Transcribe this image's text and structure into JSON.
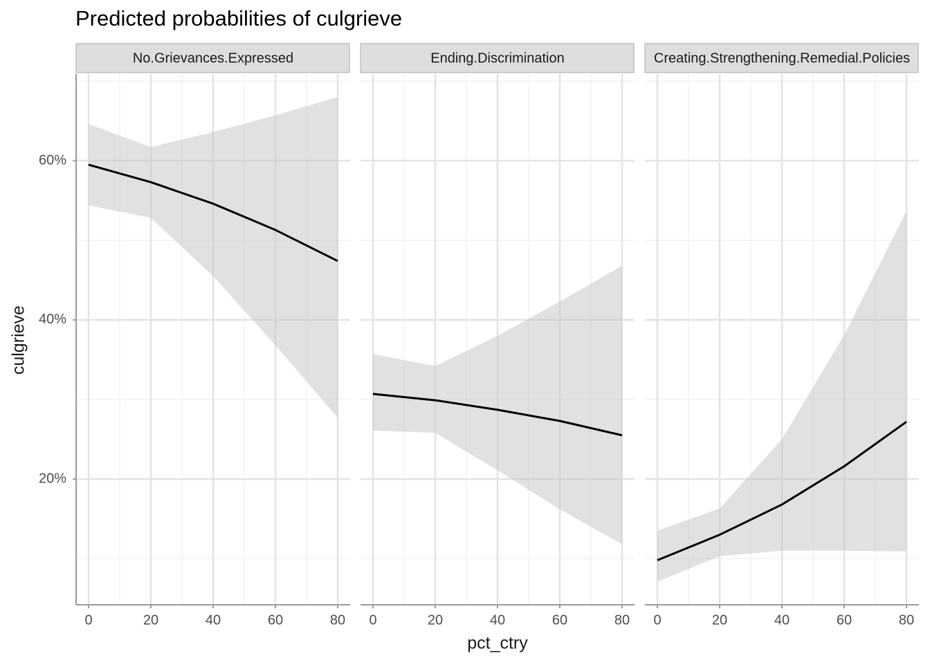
{
  "chart_data": {
    "type": "line",
    "title": "Predicted probabilities of culgrieve",
    "x_label": "pct_ctry",
    "y_label": "culgrieve",
    "xlim": [
      -4,
      84
    ],
    "xticks": [
      0,
      20,
      40,
      60,
      80
    ],
    "x_minor_grid": [
      10,
      30,
      50,
      70
    ],
    "ylim": [
      4.2,
      70.9
    ],
    "yticks": [
      {
        "value": 20,
        "label": "20%"
      },
      {
        "value": 40,
        "label": "40%"
      },
      {
        "value": 60,
        "label": "60%"
      }
    ],
    "y_minor_grid": [
      10,
      30,
      50,
      70
    ],
    "grid": true,
    "color": "#000000",
    "band_color": "#c8c8c8",
    "facets": [
      {
        "title": "No.Grievances.Expressed",
        "x": [
          0,
          20,
          40,
          60,
          80
        ],
        "values": [
          59.5,
          57.3,
          54.6,
          51.3,
          47.4
        ],
        "lower": [
          54.4,
          52.8,
          45.5,
          36.8,
          27.7
        ],
        "upper": [
          64.6,
          61.7,
          63.6,
          65.7,
          68.0
        ]
      },
      {
        "title": "Ending.Discrimination",
        "x": [
          0,
          20,
          40,
          60,
          80
        ],
        "values": [
          30.7,
          29.9,
          28.7,
          27.3,
          25.5
        ],
        "lower": [
          26.1,
          25.8,
          21.1,
          16.2,
          11.8
        ],
        "upper": [
          35.7,
          34.2,
          38.0,
          42.3,
          46.8
        ]
      },
      {
        "title": "Creating.Strengthening.Remedial.Policies",
        "x": [
          0,
          20,
          40,
          60,
          80
        ],
        "values": [
          9.8,
          13.0,
          16.8,
          21.6,
          27.2
        ],
        "lower": [
          7.1,
          10.3,
          11.0,
          11.0,
          10.9
        ],
        "upper": [
          13.5,
          16.3,
          25.0,
          38.1,
          53.7
        ]
      }
    ]
  }
}
